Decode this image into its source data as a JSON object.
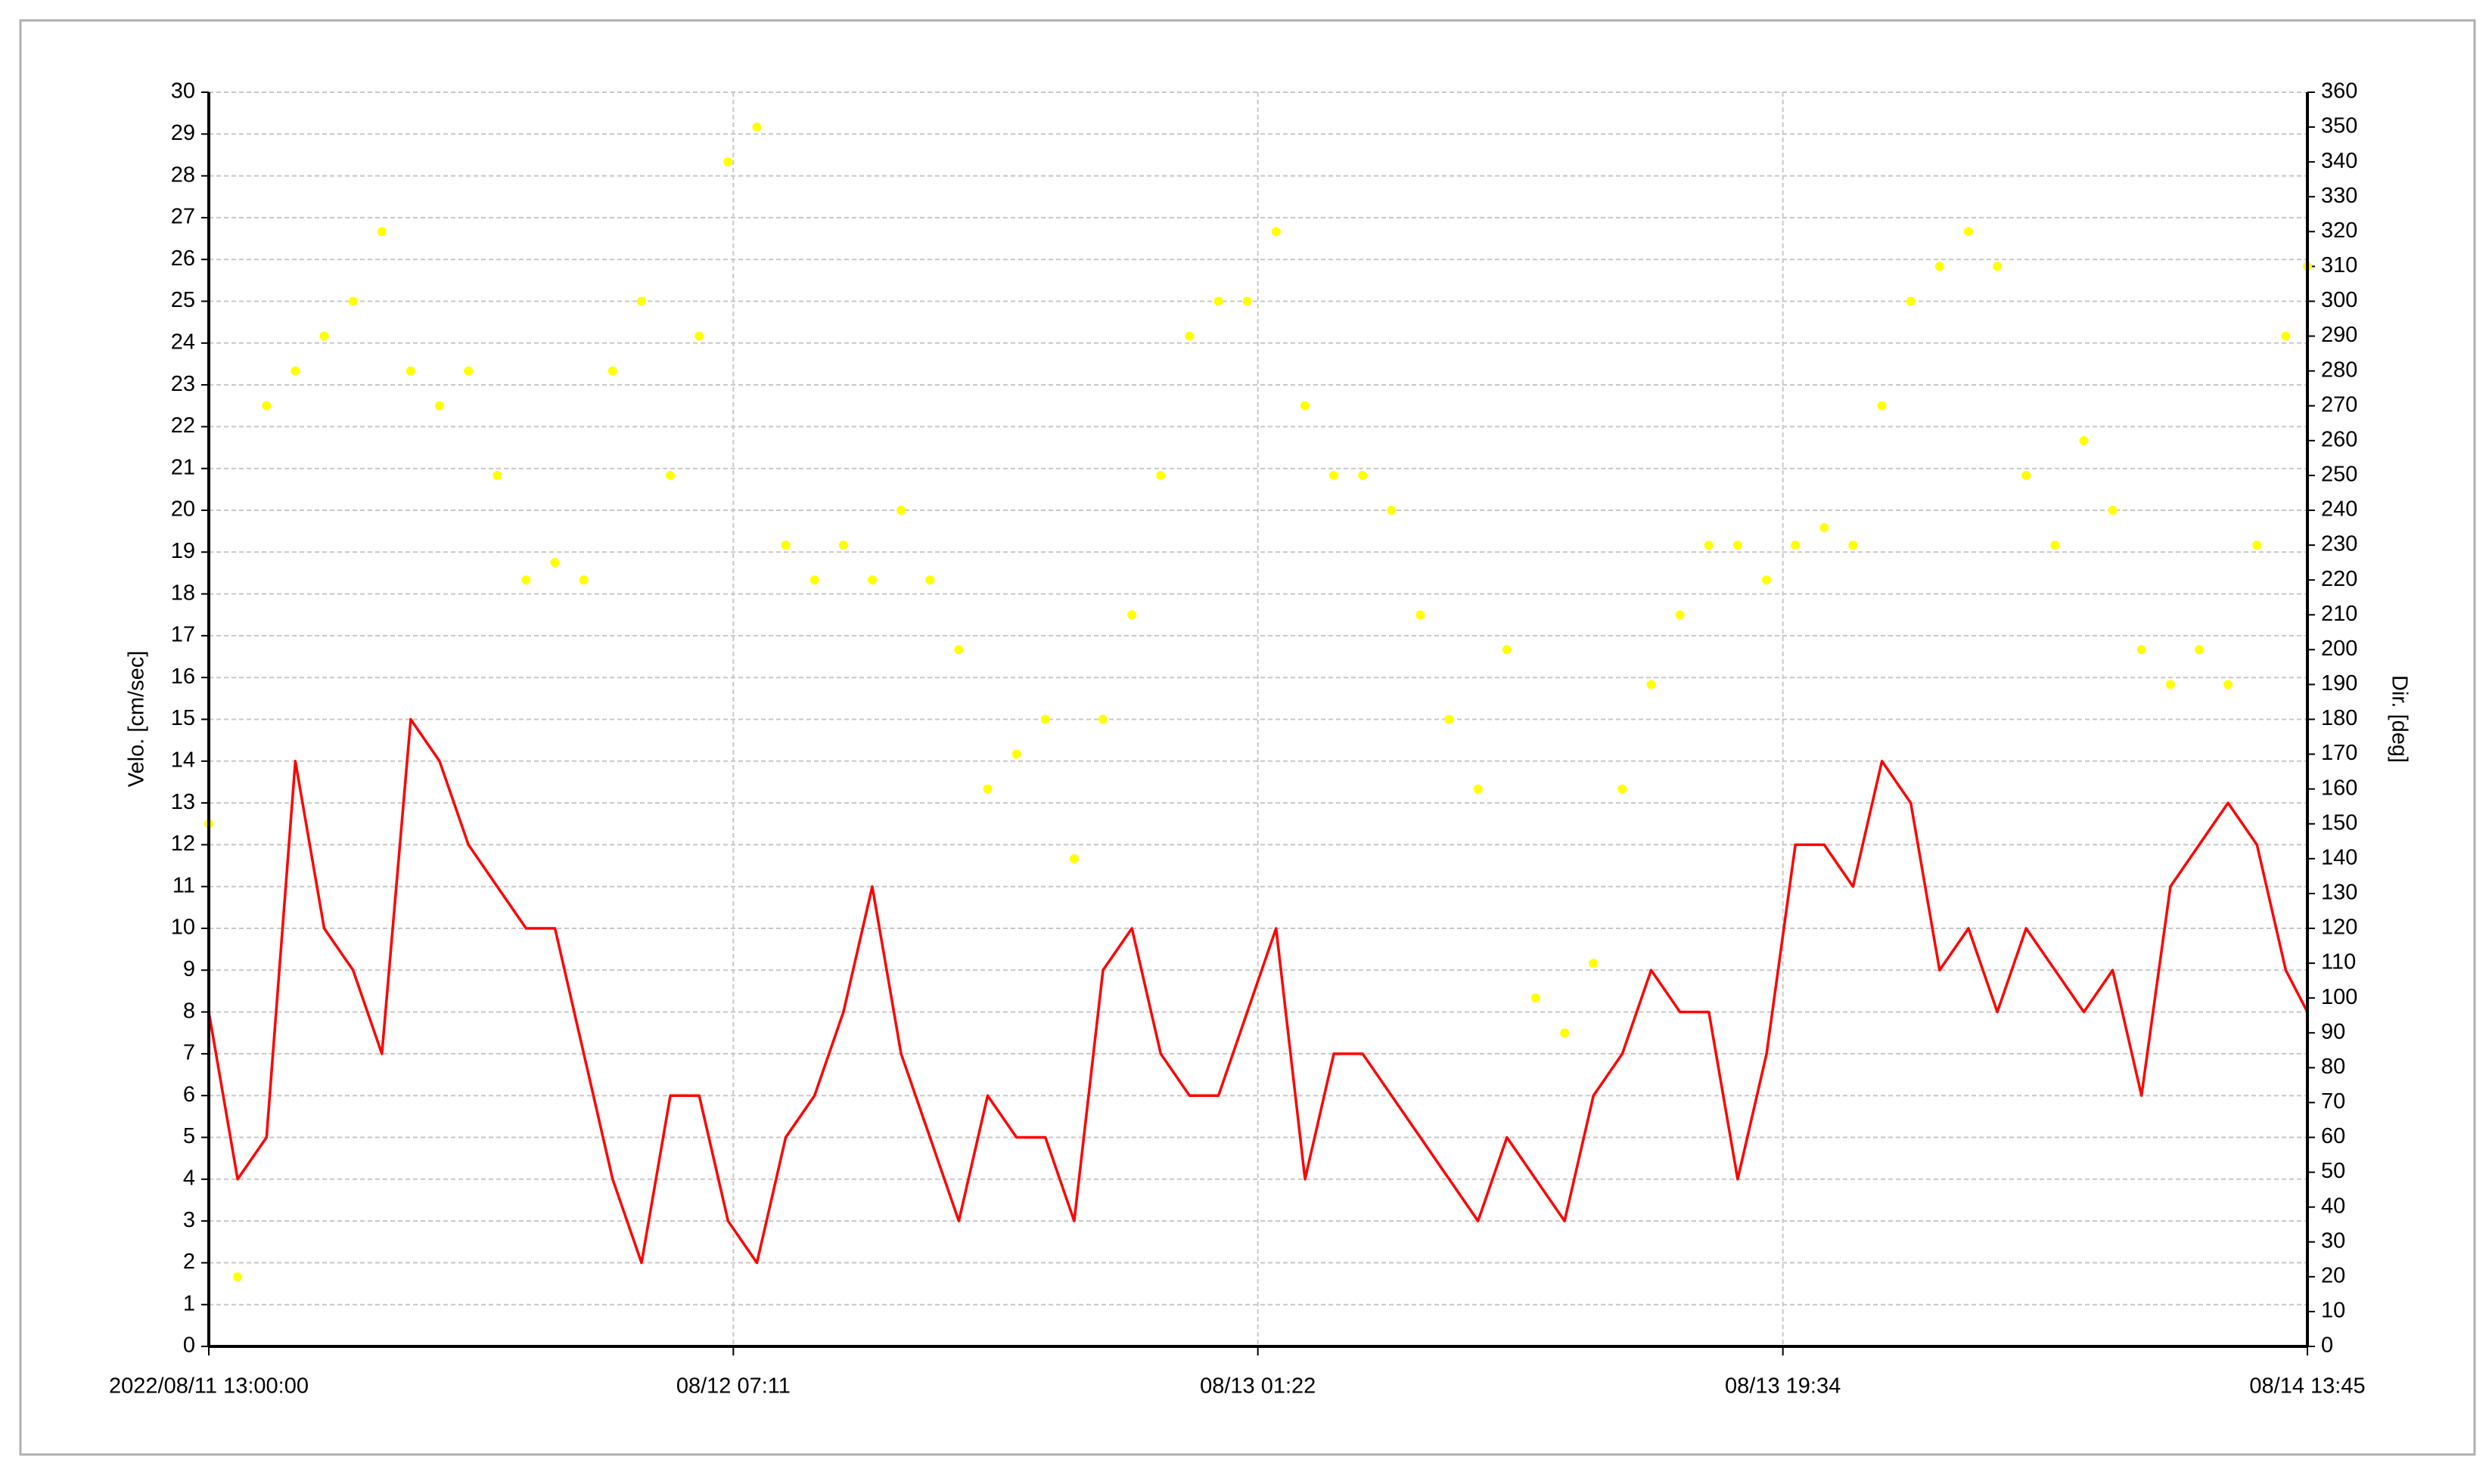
{
  "chart_data": {
    "type": "line-scatter",
    "ylabel": "Velo. [cm/sec]",
    "y2label": "Dir. [deg]",
    "x": [
      "2022-08-11 13:00",
      "2022-08-11 14:00",
      "2022-08-11 15:00",
      "2022-08-11 16:00",
      "2022-08-11 17:00",
      "2022-08-11 18:00",
      "2022-08-11 19:00",
      "2022-08-11 20:00",
      "2022-08-11 21:00",
      "2022-08-11 22:00",
      "2022-08-11 23:00",
      "2022-08-12 00:00",
      "2022-08-12 01:00",
      "2022-08-12 02:00",
      "2022-08-12 03:00",
      "2022-08-12 04:00",
      "2022-08-12 05:00",
      "2022-08-12 06:00",
      "2022-08-12 07:00",
      "2022-08-12 08:00",
      "2022-08-12 09:00",
      "2022-08-12 10:00",
      "2022-08-12 11:00",
      "2022-08-12 12:00",
      "2022-08-12 13:00",
      "2022-08-12 14:00",
      "2022-08-12 15:00",
      "2022-08-12 16:00",
      "2022-08-12 17:00",
      "2022-08-12 18:00",
      "2022-08-12 19:00",
      "2022-08-12 20:00",
      "2022-08-12 21:00",
      "2022-08-12 22:00",
      "2022-08-12 23:00",
      "2022-08-13 00:00",
      "2022-08-13 01:00",
      "2022-08-13 02:00",
      "2022-08-13 03:00",
      "2022-08-13 04:00",
      "2022-08-13 05:00",
      "2022-08-13 06:00",
      "2022-08-13 07:00",
      "2022-08-13 08:00",
      "2022-08-13 09:00",
      "2022-08-13 10:00",
      "2022-08-13 11:00",
      "2022-08-13 12:00",
      "2022-08-13 13:00",
      "2022-08-13 14:00",
      "2022-08-13 15:00",
      "2022-08-13 16:00",
      "2022-08-13 17:00",
      "2022-08-13 18:00",
      "2022-08-13 19:00",
      "2022-08-13 20:00",
      "2022-08-13 21:00",
      "2022-08-13 22:00",
      "2022-08-13 23:00",
      "2022-08-14 00:00",
      "2022-08-14 01:00",
      "2022-08-14 02:00",
      "2022-08-14 03:00",
      "2022-08-14 04:00",
      "2022-08-14 05:00",
      "2022-08-14 06:00",
      "2022-08-14 07:00",
      "2022-08-14 08:00",
      "2022-08-14 09:00",
      "2022-08-14 10:00",
      "2022-08-14 11:00",
      "2022-08-14 12:00",
      "2022-08-14 13:00",
      "2022-08-14 13:45"
    ],
    "series": [
      {
        "kind": "line",
        "color": "#ff0000",
        "values": [
          8,
          4,
          5,
          14,
          10,
          9,
          7,
          15,
          14,
          12,
          11,
          10,
          10,
          7,
          4,
          2,
          6,
          6,
          3,
          2,
          5,
          6,
          8,
          11,
          7,
          5,
          3,
          6,
          5,
          5,
          3,
          9,
          10,
          7,
          6,
          6,
          8,
          10,
          4,
          7,
          7,
          6,
          5,
          4,
          3,
          5,
          4,
          3,
          6,
          7,
          9,
          8,
          8,
          4,
          7,
          12,
          12,
          11,
          14,
          13,
          9,
          10,
          8,
          10,
          9,
          8,
          9,
          6,
          11,
          12,
          13,
          12,
          9,
          8
        ]
      },
      {
        "kind": "scatter",
        "axis": "y2",
        "color": "#ffff00",
        "values": [
          150,
          20,
          270,
          280,
          290,
          300,
          320,
          280,
          270,
          280,
          250,
          220,
          225,
          220,
          280,
          300,
          250,
          290,
          340,
          350,
          230,
          220,
          230,
          220,
          240,
          220,
          200,
          160,
          170,
          180,
          140,
          180,
          210,
          250,
          290,
          300,
          300,
          320,
          270,
          250,
          250,
          240,
          210,
          180,
          160,
          200,
          100,
          90,
          110,
          160,
          190,
          210,
          230,
          230,
          220,
          230,
          235,
          230,
          270,
          300,
          310,
          320,
          310,
          250,
          230,
          260,
          240,
          200,
          190,
          200,
          190,
          230,
          290,
          310
        ]
      }
    ],
    "xlim": [
      "2022-08-11 13:00",
      "2022-08-14 13:45"
    ],
    "xticks": [
      {
        "value": "2022-08-11 13:00",
        "label": "2022/08/11 13:00:00"
      },
      {
        "value": "2022-08-12 07:11",
        "label": "08/12 07:11"
      },
      {
        "value": "2022-08-13 01:22",
        "label": "08/13 01:22"
      },
      {
        "value": "2022-08-13 19:34",
        "label": "08/13 19:34"
      },
      {
        "value": "2022-08-14 13:45",
        "label": "08/14 13:45"
      }
    ],
    "ylim": [
      0,
      30
    ],
    "yticks": [
      0,
      1,
      2,
      3,
      4,
      5,
      6,
      7,
      8,
      9,
      10,
      11,
      12,
      13,
      14,
      15,
      16,
      17,
      18,
      19,
      20,
      21,
      22,
      23,
      24,
      25,
      26,
      27,
      28,
      29,
      30
    ],
    "y2lim": [
      0,
      360
    ],
    "y2ticks": [
      0,
      10,
      20,
      30,
      40,
      50,
      60,
      70,
      80,
      90,
      100,
      110,
      120,
      130,
      140,
      150,
      160,
      170,
      180,
      190,
      200,
      210,
      220,
      230,
      240,
      250,
      260,
      270,
      280,
      290,
      300,
      310,
      320,
      330,
      340,
      350,
      360
    ],
    "grid": true
  }
}
